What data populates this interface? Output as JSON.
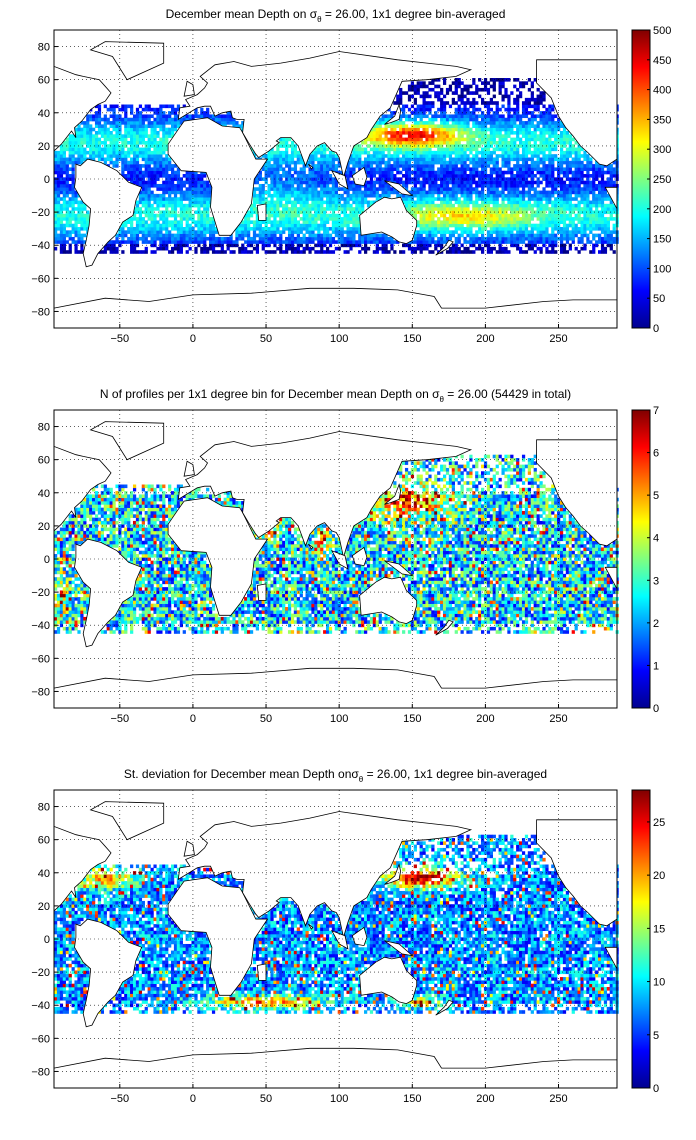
{
  "chart_data": [
    {
      "type": "heatmap",
      "title": "December mean Depth on σθ = 26.00, 1x1 degree bin-averaged",
      "title_parts": {
        "before": "December mean Depth on ",
        "sigma": "σ",
        "sub": "θ",
        "after": " = 26.00, 1x1 degree bin-averaged"
      },
      "xlim": [
        -95,
        290
      ],
      "ylim": [
        -90,
        90
      ],
      "x_ticks": [
        -50,
        0,
        50,
        100,
        150,
        200,
        250
      ],
      "y_ticks": [
        80,
        60,
        40,
        20,
        0,
        -20,
        -40,
        -60,
        -80
      ],
      "colorbar": {
        "min": 0,
        "max": 500,
        "ticks": [
          0,
          50,
          100,
          150,
          200,
          250,
          300,
          350,
          400,
          450,
          500
        ]
      },
      "grid": true,
      "pattern": "mean"
    },
    {
      "type": "heatmap",
      "title": "N of profiles per 1x1 degree bin for December mean Depth on σθ = 26.00 (54429 in total)",
      "title_parts": {
        "before": "N of profiles per 1x1 degree bin for December mean Depth on ",
        "sigma": "σ",
        "sub": "θ",
        "after": " = 26.00 (54429 in total)"
      },
      "xlim": [
        -95,
        290
      ],
      "ylim": [
        -90,
        90
      ],
      "x_ticks": [
        -50,
        0,
        50,
        100,
        150,
        200,
        250
      ],
      "y_ticks": [
        80,
        60,
        40,
        20,
        0,
        -20,
        -40,
        -60,
        -80
      ],
      "colorbar": {
        "min": 0,
        "max": 7,
        "ticks": [
          0,
          1,
          2,
          3,
          4,
          5,
          6,
          7
        ]
      },
      "grid": true,
      "pattern": "count"
    },
    {
      "type": "heatmap",
      "title": "St. deviation for December mean Depth on σθ = 26.00, 1x1 degree bin-averaged",
      "title_parts": {
        "before": "St. deviation for December mean Depth on",
        "sigma": "σ",
        "sub": "θ",
        "after": " = 26.00, 1x1 degree bin-averaged"
      },
      "xlim": [
        -95,
        290
      ],
      "ylim": [
        -90,
        90
      ],
      "x_ticks": [
        -50,
        0,
        50,
        100,
        150,
        200,
        250
      ],
      "y_ticks": [
        80,
        60,
        40,
        20,
        0,
        -20,
        -40,
        -60,
        -80
      ],
      "colorbar": {
        "min": 0,
        "max": 28,
        "ticks": [
          0,
          5,
          10,
          15,
          20,
          25
        ]
      },
      "grid": true,
      "pattern": "std"
    }
  ]
}
